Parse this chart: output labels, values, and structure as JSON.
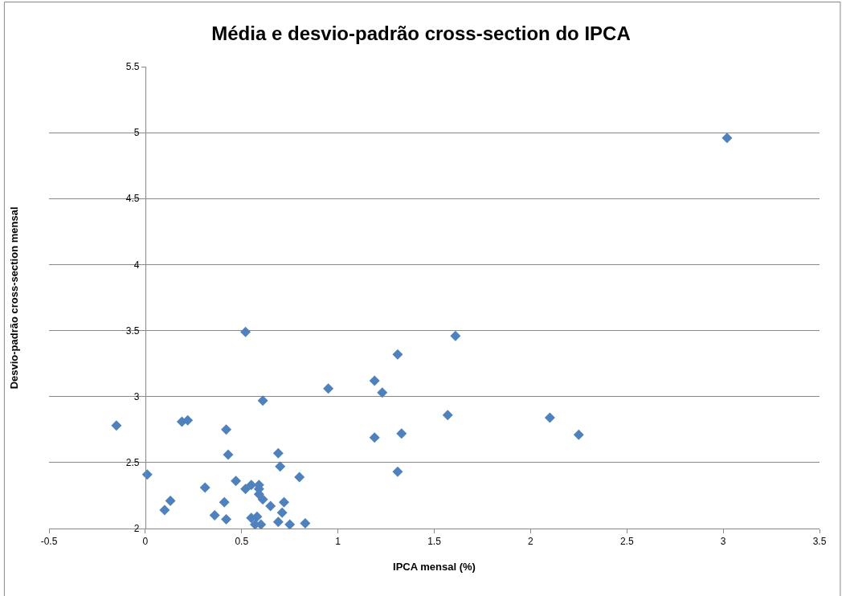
{
  "chart_data": {
    "type": "scatter",
    "title": "Média e desvio-padrão cross-section do IPCA",
    "xlabel": "IPCA mensal (%)",
    "ylabel": "Desvio-padrão cross-section mensal",
    "x": [
      -0.15,
      0.01,
      0.1,
      0.13,
      0.19,
      0.22,
      0.31,
      0.36,
      0.41,
      0.42,
      0.42,
      0.43,
      0.47,
      0.52,
      0.52,
      0.55,
      0.55,
      0.57,
      0.58,
      0.59,
      0.59,
      0.59,
      0.61,
      0.6,
      0.61,
      0.65,
      0.69,
      0.7,
      0.72,
      0.71,
      0.69,
      0.75,
      0.8,
      0.83,
      0.95,
      1.19,
      1.23,
      1.31,
      1.61,
      1.57,
      1.19,
      1.33,
      1.31,
      2.1,
      2.25,
      3.02
    ],
    "values": [
      2.78,
      2.41,
      2.14,
      2.21,
      2.81,
      2.82,
      2.31,
      2.1,
      2.2,
      2.75,
      2.07,
      2.56,
      2.36,
      3.49,
      2.3,
      2.33,
      2.08,
      2.03,
      2.09,
      2.33,
      2.3,
      2.26,
      2.22,
      2.03,
      2.97,
      2.17,
      2.57,
      2.47,
      2.2,
      2.12,
      2.05,
      2.03,
      2.39,
      2.04,
      3.06,
      3.12,
      3.03,
      3.32,
      3.46,
      2.86,
      2.69,
      2.72,
      2.43,
      2.84,
      2.71,
      4.96
    ],
    "color": "#4f81bd",
    "marker": "diamond",
    "xlim": [
      -0.5,
      3.5
    ],
    "xticks": [
      -0.5,
      0,
      0.5,
      1,
      1.5,
      2,
      2.5,
      3,
      3.5
    ],
    "ylim": [
      2,
      5.5
    ],
    "yticks": [
      2,
      2.5,
      3,
      3.5,
      4,
      4.5,
      5,
      5.5
    ],
    "grid": "y",
    "legend": false
  }
}
